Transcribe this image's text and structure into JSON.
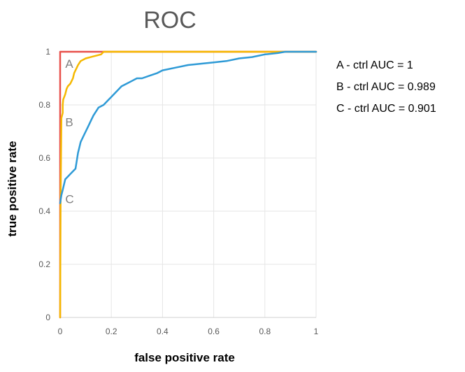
{
  "chart_data": {
    "type": "line",
    "title": "ROC",
    "xlabel": "false positive rate",
    "ylabel": "true positive rate",
    "xlim": [
      0,
      1
    ],
    "ylim": [
      0,
      1
    ],
    "grid": true,
    "x_ticks": [
      0,
      0.2,
      0.4,
      0.6,
      0.8,
      1
    ],
    "y_ticks": [
      0,
      0.2,
      0.4,
      0.6,
      0.8,
      1
    ],
    "x_tick_labels": [
      "0",
      "0.2",
      "0.4",
      "0.6",
      "0.8",
      "1"
    ],
    "y_tick_labels": [
      "0",
      "0.2",
      "0.4",
      "0.6",
      "0.8",
      "1"
    ],
    "series": [
      {
        "name": "A",
        "color": "#e8504a",
        "x": [
          0,
          0,
          1
        ],
        "y": [
          0,
          1,
          1
        ]
      },
      {
        "name": "B",
        "color": "#f5b800",
        "x": [
          0,
          0.002,
          0.005,
          0.01,
          0.01,
          0.012,
          0.02,
          0.025,
          0.03,
          0.04,
          0.05,
          0.055,
          0.06,
          0.07,
          0.08,
          0.1,
          0.12,
          0.14,
          0.16,
          0.17,
          0.2,
          0.25,
          0.3,
          0.33,
          1
        ],
        "y": [
          0,
          0.45,
          0.75,
          0.77,
          0.8,
          0.82,
          0.84,
          0.86,
          0.87,
          0.88,
          0.9,
          0.92,
          0.93,
          0.95,
          0.965,
          0.975,
          0.98,
          0.985,
          0.99,
          1,
          1,
          1,
          1,
          1,
          1
        ]
      },
      {
        "name": "C",
        "color": "#2e9ad6",
        "x": [
          0,
          0.005,
          0.01,
          0.015,
          0.02,
          0.03,
          0.04,
          0.05,
          0.06,
          0.065,
          0.07,
          0.075,
          0.08,
          0.09,
          0.1,
          0.11,
          0.12,
          0.13,
          0.15,
          0.17,
          0.19,
          0.2,
          0.22,
          0.24,
          0.26,
          0.28,
          0.3,
          0.32,
          0.35,
          0.38,
          0.4,
          0.45,
          0.5,
          0.55,
          0.6,
          0.65,
          0.7,
          0.75,
          0.8,
          0.85,
          0.88,
          0.9,
          1
        ],
        "y": [
          0.43,
          0.46,
          0.48,
          0.5,
          0.52,
          0.53,
          0.54,
          0.55,
          0.56,
          0.59,
          0.62,
          0.64,
          0.66,
          0.68,
          0.7,
          0.72,
          0.74,
          0.76,
          0.79,
          0.8,
          0.82,
          0.83,
          0.85,
          0.87,
          0.88,
          0.89,
          0.9,
          0.9,
          0.91,
          0.92,
          0.93,
          0.94,
          0.95,
          0.955,
          0.96,
          0.965,
          0.975,
          0.98,
          0.99,
          0.995,
          1,
          1,
          1
        ]
      }
    ],
    "curve_labels": [
      {
        "text": "A",
        "x": 0.02,
        "y": 0.94
      },
      {
        "text": "B",
        "x": 0.02,
        "y": 0.72
      },
      {
        "text": "C",
        "x": 0.02,
        "y": 0.43
      }
    ],
    "legend": {
      "position": "right",
      "entries": [
        "A - ctrl AUC = 1",
        "B - ctrl AUC = 0.989",
        "C - ctrl AUC = 0.901"
      ]
    }
  }
}
